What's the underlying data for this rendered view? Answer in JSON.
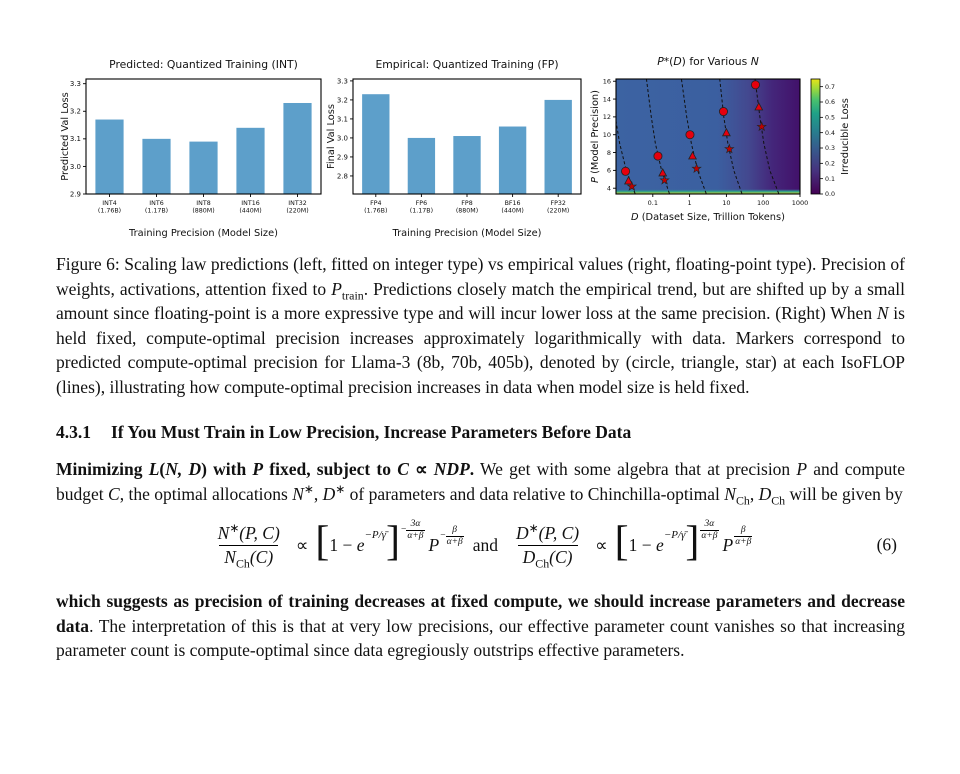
{
  "chart_data": [
    {
      "type": "bar",
      "title": "Predicted: Quantized Training (INT)",
      "xlabel": "Training Precision (Model Size)",
      "ylabel": "Predicted Val Loss",
      "categories": [
        {
          "label": "INT4",
          "size": "(1.76B)"
        },
        {
          "label": "INT6",
          "size": "(1.17B)"
        },
        {
          "label": "INT8",
          "size": "(880M)"
        },
        {
          "label": "INT16",
          "size": "(440M)"
        },
        {
          "label": "INT32",
          "size": "(220M)"
        }
      ],
      "values": [
        3.17,
        3.1,
        3.09,
        3.14,
        3.23
      ],
      "yticks": [
        2.9,
        3.0,
        3.1,
        3.2,
        3.3
      ],
      "ylim": [
        2.9,
        3.317
      ],
      "bar_color": "#5d9fca"
    },
    {
      "type": "bar",
      "title": "Empirical: Quantized Training (FP)",
      "xlabel": "Training Precision (Model Size)",
      "ylabel": "Final Val Loss",
      "categories": [
        {
          "label": "FP4",
          "size": "(1.76B)"
        },
        {
          "label": "FP6",
          "size": "(1.17B)"
        },
        {
          "label": "FP8",
          "size": "(880M)"
        },
        {
          "label": "BF16",
          "size": "(440M)"
        },
        {
          "label": "FP32",
          "size": "(220M)"
        }
      ],
      "values": [
        3.23,
        3.0,
        3.01,
        3.06,
        3.2
      ],
      "yticks": [
        2.8,
        2.9,
        3.0,
        3.1,
        3.2,
        3.3
      ],
      "ylim": [
        2.705,
        3.31
      ],
      "bar_color": "#5d9fca"
    },
    {
      "type": "heatmap",
      "title_segments": [
        {
          "t": "P",
          "i": 1
        },
        {
          "t": "*("
        },
        {
          "t": "D",
          "i": 1
        },
        {
          "t": ") for Various "
        },
        {
          "t": "N",
          "i": 1
        }
      ],
      "xlabel_segments": [
        {
          "t": "D",
          "i": 1
        },
        {
          "t": " (Dataset Size, Trillion Tokens)"
        }
      ],
      "ylabel_segments": [
        {
          "t": "P",
          "i": 1
        },
        {
          "t": " (Model Precision)"
        }
      ],
      "xlim_log": [
        -2,
        3
      ],
      "ylim": [
        3.35,
        16.25
      ],
      "xticks": [
        {
          "v": 0.1,
          "label": "0.1"
        },
        {
          "v": 1,
          "label": "1"
        },
        {
          "v": 10,
          "label": "10"
        },
        {
          "v": 100,
          "label": "100"
        },
        {
          "v": 1000,
          "label": "1000"
        }
      ],
      "yticks": [
        4,
        6,
        8,
        10,
        12,
        14,
        16
      ],
      "bg_gradient": [
        {
          "o": 0,
          "c": "#3c63a2"
        },
        {
          "o": 0.55,
          "c": "#3b5fa0"
        },
        {
          "o": 0.72,
          "c": "#43488f"
        },
        {
          "o": 0.85,
          "c": "#44267a"
        },
        {
          "o": 1,
          "c": "#42116a"
        }
      ],
      "bottom_strip": [
        {
          "o": 0,
          "c": "rgba(61,100,162,0)"
        },
        {
          "o": 0.45,
          "c": "#2a9d8f"
        },
        {
          "o": 0.85,
          "c": "#9ec647"
        },
        {
          "o": 1,
          "c": "#d9e24f"
        }
      ],
      "curve_style": {
        "color": "#111111",
        "dash": "3 2.2"
      },
      "marker_colors": {
        "circle": "#e5000e",
        "triangle": "#e5000e",
        "star": "#c00000"
      },
      "curves": [
        {
          "path": [
            [
              3.4,
              -1.48
            ],
            [
              6,
              -1.72
            ],
            [
              9,
              -1.9
            ],
            [
              12,
              -2.02
            ],
            [
              16.2,
              -2.15
            ]
          ],
          "markers": [
            {
              "shape": "circle",
              "logd": -1.74,
              "p": 5.9
            },
            {
              "shape": "triangle",
              "logd": -1.66,
              "p": 4.8
            },
            {
              "shape": "star",
              "logd": -1.57,
              "p": 4.2
            }
          ]
        },
        {
          "path": [
            [
              3.4,
              -0.55
            ],
            [
              6,
              -0.76
            ],
            [
              9,
              -0.93
            ],
            [
              12,
              -1.04
            ],
            [
              16.2,
              -1.17
            ]
          ],
          "markers": [
            {
              "shape": "circle",
              "logd": -0.86,
              "p": 7.6
            },
            {
              "shape": "triangle",
              "logd": -0.73,
              "p": 5.7
            },
            {
              "shape": "star",
              "logd": -0.68,
              "p": 4.9
            }
          ]
        },
        {
          "path": [
            [
              3.4,
              0.45
            ],
            [
              6,
              0.22
            ],
            [
              9,
              0.05
            ],
            [
              12,
              -0.08
            ],
            [
              16.2,
              -0.22
            ]
          ],
          "markers": [
            {
              "shape": "circle",
              "logd": 0.01,
              "p": 10.0
            },
            {
              "shape": "triangle",
              "logd": 0.08,
              "p": 7.6
            },
            {
              "shape": "star",
              "logd": 0.19,
              "p": 6.2
            }
          ]
        },
        {
          "path": [
            [
              3.4,
              1.42
            ],
            [
              6,
              1.2
            ],
            [
              9,
              1.04
            ],
            [
              12,
              0.93
            ],
            [
              16.2,
              0.82
            ]
          ],
          "markers": [
            {
              "shape": "circle",
              "logd": 0.92,
              "p": 12.6
            },
            {
              "shape": "triangle",
              "logd": 1.0,
              "p": 10.2
            },
            {
              "shape": "star",
              "logd": 1.08,
              "p": 8.4
            }
          ]
        },
        {
          "path": [
            [
              3.4,
              2.42
            ],
            [
              6,
              2.18
            ],
            [
              9,
              2.02
            ],
            [
              12,
              1.91
            ],
            [
              16.2,
              1.78
            ]
          ],
          "markers": [
            {
              "shape": "circle",
              "logd": 1.79,
              "p": 15.6
            },
            {
              "shape": "triangle",
              "logd": 1.88,
              "p": 13.1
            },
            {
              "shape": "star",
              "logd": 1.96,
              "p": 10.9
            }
          ]
        }
      ],
      "colorbar": {
        "label": "Irreducible Loss",
        "ticks": [
          0.0,
          0.1,
          0.2,
          0.3,
          0.4,
          0.5,
          0.6,
          0.7
        ],
        "vmax": 0.75,
        "gradient": [
          {
            "o": 0,
            "c": "#440154"
          },
          {
            "o": 0.2,
            "c": "#46327e"
          },
          {
            "o": 0.4,
            "c": "#365c8d"
          },
          {
            "o": 0.55,
            "c": "#277f8e"
          },
          {
            "o": 0.7,
            "c": "#1fa187"
          },
          {
            "o": 0.82,
            "c": "#4ac16d"
          },
          {
            "o": 0.92,
            "c": "#a0da39"
          },
          {
            "o": 1,
            "c": "#e8e419"
          }
        ]
      }
    }
  ],
  "caption_segments": [
    {
      "t": "Figure 6: Scaling law predictions (left, fitted on integer type) vs empirical values (right, floating-point type). Precision of weights, activations, attention fixed to "
    },
    {
      "t": "P",
      "i": 1
    },
    {
      "t": "train",
      "sub": 1
    },
    {
      "t": ". Predictions closely match the empirical trend, but are shifted up by a small amount since floating-point is a more expressive type and will incur lower loss at the same precision. (Right) When "
    },
    {
      "t": "N",
      "i": 1
    },
    {
      "t": " is held fixed, compute-optimal precision increases approximately logarithmically with data. Markers correspond to predicted compute-optimal precision for Llama-3 (8b, 70b, 405b), denoted by (circle, triangle, star) at each IsoFLOP (lines), illustrating how compute-optimal precision increases in data when model size is held fixed."
    }
  ],
  "section": {
    "number": "4.3.1",
    "title": "If You Must Train in Low Precision, Increase Parameters Before Data"
  },
  "para1_segments": [
    {
      "t": "Minimizing ",
      "b": 1
    },
    {
      "t": "L",
      "b": 1,
      "i": 1
    },
    {
      "t": "(",
      "b": 1
    },
    {
      "t": "N, D",
      "b": 1,
      "i": 1
    },
    {
      "t": ")",
      "b": 1
    },
    {
      "t": " with ",
      "b": 1
    },
    {
      "t": "P",
      "b": 1,
      "i": 1
    },
    {
      "t": " fixed, subject to ",
      "b": 1
    },
    {
      "t": "C",
      "b": 1,
      "i": 1
    },
    {
      "t": " ∝ ",
      "b": 1
    },
    {
      "t": "NDP",
      "b": 1,
      "i": 1
    },
    {
      "t": ".",
      "b": 1
    },
    {
      "t": " We get with some algebra that at precision "
    },
    {
      "t": "P",
      "i": 1
    },
    {
      "t": " and compute budget "
    },
    {
      "t": "C",
      "i": 1
    },
    {
      "t": ", the optimal allocations "
    },
    {
      "t": "N",
      "i": 1
    },
    {
      "t": "∗",
      "sup": 1
    },
    {
      "t": ", "
    },
    {
      "t": "D",
      "i": 1
    },
    {
      "t": "∗",
      "sup": 1
    },
    {
      "t": " of parameters and data relative to Chinchilla-optimal "
    },
    {
      "t": "N",
      "i": 1
    },
    {
      "t": "Ch",
      "sub": 1
    },
    {
      "t": ", "
    },
    {
      "t": "D",
      "i": 1
    },
    {
      "t": "Ch",
      "sub": 1
    },
    {
      "t": " will be given by"
    }
  ],
  "equation": {
    "number": "(6)",
    "propto": "∝",
    "and_word": "and",
    "bracket_open": "[",
    "bracket_close": "]",
    "n_num_base": "N",
    "n_num_sup": "∗",
    "n_num_args": "(P, C)",
    "n_den_base": "N",
    "n_den_sub": "Ch",
    "n_den_args": "(C)",
    "d_num_base": "D",
    "d_num_sup": "∗",
    "d_num_args": "(P, C)",
    "d_den_base": "D",
    "d_den_sub": "Ch",
    "d_den_args": "(C)",
    "body_pre": "1 − ",
    "body_e": "e",
    "body_exp": "−P/γ̄",
    "neg_exp_sign": "−",
    "pos_exp_sign": "",
    "exp_num": "3α",
    "exp_den": "α+β",
    "p_base": "P",
    "p_neg_sign": "−",
    "p_pos_sign": "",
    "p_exp_num": "β",
    "p_exp_den": "α+β"
  },
  "para2_segments": [
    {
      "t": "which suggests as precision of training decreases at fixed compute, we should increase parameters and decrease data",
      "b": 1
    },
    {
      "t": ". The interpretation of this is that at very low precisions, our effective parameter count vanishes so that increasing parameter count is compute-optimal since data egregiously outstrips effective parameters."
    }
  ]
}
